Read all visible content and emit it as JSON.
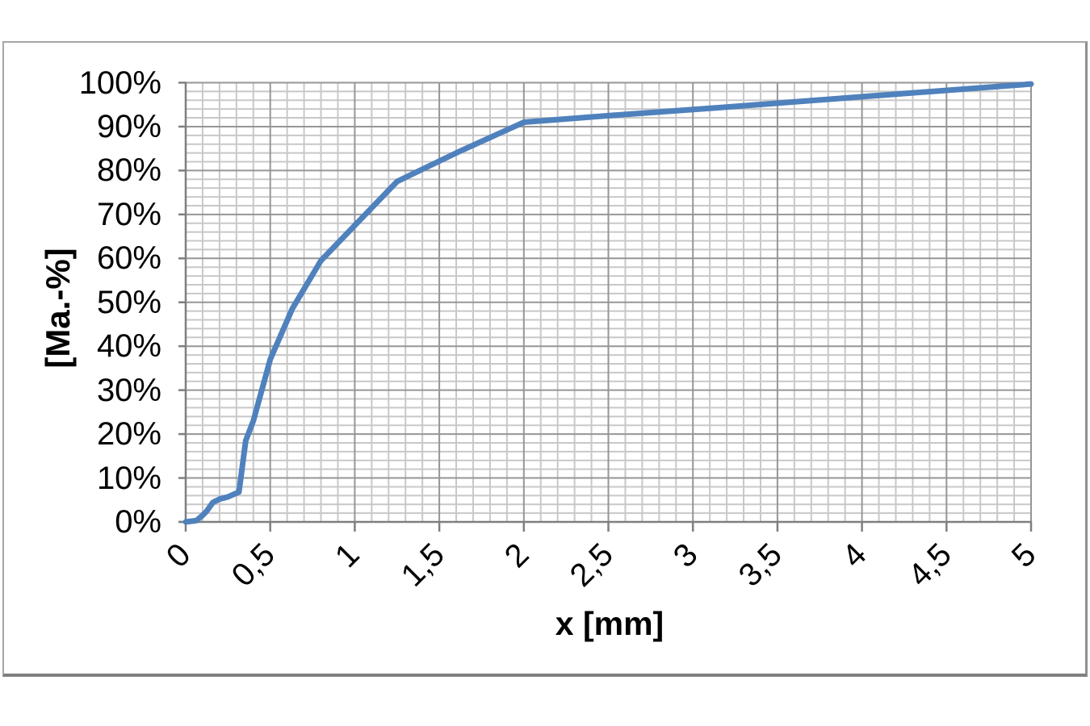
{
  "chart_data": {
    "type": "line",
    "title": "",
    "xlabel": "x [mm]",
    "ylabel": "[Ma.-%]",
    "xlim": [
      0,
      5
    ],
    "ylim": [
      0,
      100
    ],
    "grid": "major+minor",
    "legend": "none",
    "x_ticks": [
      {
        "value": 0,
        "label": "0"
      },
      {
        "value": 0.5,
        "label": "0,5"
      },
      {
        "value": 1,
        "label": "1"
      },
      {
        "value": 1.5,
        "label": "1,5"
      },
      {
        "value": 2,
        "label": "2"
      },
      {
        "value": 2.5,
        "label": "2,5"
      },
      {
        "value": 3,
        "label": "3"
      },
      {
        "value": 3.5,
        "label": "3,5"
      },
      {
        "value": 4,
        "label": "4"
      },
      {
        "value": 4.5,
        "label": "4,5"
      },
      {
        "value": 5,
        "label": "5"
      }
    ],
    "y_ticks": [
      {
        "value": 0,
        "label": "0%"
      },
      {
        "value": 10,
        "label": "10%"
      },
      {
        "value": 20,
        "label": "20%"
      },
      {
        "value": 30,
        "label": "30%"
      },
      {
        "value": 40,
        "label": "40%"
      },
      {
        "value": 50,
        "label": "50%"
      },
      {
        "value": 60,
        "label": "60%"
      },
      {
        "value": 70,
        "label": "70%"
      },
      {
        "value": 80,
        "label": "80%"
      },
      {
        "value": 90,
        "label": "90%"
      },
      {
        "value": 100,
        "label": "100%"
      }
    ],
    "x_minor_step": 0.1,
    "x_major_step": 0.5,
    "y_minor_step": 2,
    "y_major_step": 10,
    "series": [
      {
        "color": "#4F81BD",
        "points": [
          [
            0,
            0
          ],
          [
            0.063,
            0.3
          ],
          [
            0.1,
            1.5
          ],
          [
            0.125,
            2.5
          ],
          [
            0.16,
            4.4
          ],
          [
            0.2,
            5.2
          ],
          [
            0.25,
            5.7
          ],
          [
            0.315,
            6.8
          ],
          [
            0.355,
            18.5
          ],
          [
            0.4,
            23
          ],
          [
            0.5,
            37
          ],
          [
            0.63,
            48.5
          ],
          [
            0.8,
            59.5
          ],
          [
            1.0,
            67.5
          ],
          [
            1.25,
            77.5
          ],
          [
            1.6,
            84
          ],
          [
            2.0,
            91
          ],
          [
            2.5,
            92.5
          ],
          [
            3.15,
            94.3
          ],
          [
            4.0,
            96.8
          ],
          [
            5.0,
            99.7
          ]
        ]
      }
    ]
  },
  "colors": {
    "curve": "#4F81BD",
    "grid_minor": "#C8C8C8",
    "grid_major": "#969696",
    "axis": "#7F7F7F",
    "frame_border": "#A6A6A6",
    "background": "#FFFFFF",
    "text": "#000000"
  }
}
